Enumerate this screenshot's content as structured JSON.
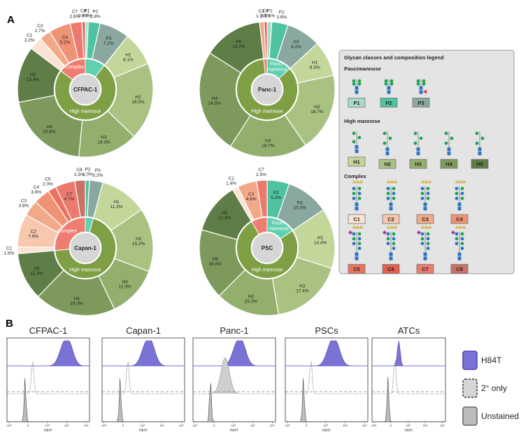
{
  "panel_labels": {
    "a": "A",
    "b": "B"
  },
  "colors": {
    "paucimannose": [
      "#a8dcc8",
      "#4fc3a1",
      "#8aa89f"
    ],
    "high_mannose": [
      "#c4d79b",
      "#a9c282",
      "#93af6e",
      "#7d9a5c",
      "#5f7d47"
    ],
    "complex": [
      "#fbe3d4",
      "#f7c8ae",
      "#f2a98a",
      "#ef9375",
      "#e9735f",
      "#e35f50",
      "#ec7a6e",
      "#c97165"
    ],
    "high_mannose_ring": "#7f9f45",
    "pauci_ring": "#5fd0b0",
    "complex_ring": "#ef7e72",
    "center": "#d6d6d6",
    "histogram_h84t": "#7b72d6",
    "histogram_unstained": "#bdbdbd"
  },
  "chart_data": [
    {
      "type": "pie",
      "title": "CFPAC-1",
      "center_label": "CFPAC-1",
      "class_labels": [
        "Complex",
        "High mannose"
      ],
      "slices": [
        {
          "name": "P1",
          "value": 0.7,
          "label": "P1\n0.7%"
        },
        {
          "name": "P2",
          "value": 2.8,
          "label": "P2\n2.8%"
        },
        {
          "name": "P3",
          "value": 7.2,
          "label": "P3\n7.2%"
        },
        {
          "name": "H1",
          "value": 8.1,
          "label": "H1\n8.1%"
        },
        {
          "name": "H2",
          "value": 18.5,
          "label": "H2\n18.5%"
        },
        {
          "name": "H3",
          "value": 14.3,
          "label": "H3\n14.3%"
        },
        {
          "name": "H4",
          "value": 20.4,
          "label": "H4\n20.4%"
        },
        {
          "name": "H5",
          "value": 13.4,
          "label": "H5\n13.4%"
        },
        {
          "name": "C1",
          "value": 3.2,
          "label": "C1\n3.2%"
        },
        {
          "name": "C3",
          "value": 2.7,
          "label": "C3\n2.7%"
        },
        {
          "name": "C4",
          "value": 5.2,
          "label": "C4\n5.2%"
        },
        {
          "name": "C7",
          "value": 2.8,
          "label": "C7\n2.8%"
        },
        {
          "name": "C8",
          "value": 0.8,
          "label": "C8\n0.8%"
        }
      ]
    },
    {
      "type": "pie",
      "title": "Panc-1",
      "center_label": "Panc-1",
      "class_labels": [
        "Pauci-\nmannose",
        "High mannose"
      ],
      "slices": [
        {
          "name": "P1",
          "value": 1.1,
          "label": "P1\n1.1%"
        },
        {
          "name": "P2",
          "value": 3.9,
          "label": "P2\n3.9%"
        },
        {
          "name": "P3",
          "value": 8.2,
          "label": "P3\n8.2%"
        },
        {
          "name": "H1",
          "value": 8.5,
          "label": "H1\n8.5%"
        },
        {
          "name": "H2",
          "value": 18.7,
          "label": "H2\n18.7%"
        },
        {
          "name": "H3",
          "value": 18.7,
          "label": "H3\n18.7%"
        },
        {
          "name": "H4",
          "value": 24.9,
          "label": "H4\n24.9%"
        },
        {
          "name": "H5",
          "value": 14.2,
          "label": "H5\n14.2%"
        },
        {
          "name": "C3",
          "value": 1.1,
          "label": "C3\n1.1%"
        },
        {
          "name": "C6",
          "value": 0.7,
          "label": "C6\n0.7%"
        }
      ]
    },
    {
      "type": "pie",
      "title": "Capan-1",
      "center_label": "Capan-1",
      "class_labels": [
        "Complex",
        "High mannose"
      ],
      "slices": [
        {
          "name": "P2",
          "value": 1.0,
          "label": "P2\n1.0%"
        },
        {
          "name": "P3",
          "value": 3.2,
          "label": "P3\n3.2%"
        },
        {
          "name": "H1",
          "value": 11.3,
          "label": "H1\n11.3%"
        },
        {
          "name": "H2",
          "value": 15.2,
          "label": "H2\n15.2%"
        },
        {
          "name": "H3",
          "value": 12.3,
          "label": "H3\n12.3%"
        },
        {
          "name": "H4",
          "value": 19.3,
          "label": "H4\n19.3%"
        },
        {
          "name": "H5",
          "value": 11.4,
          "label": "H5\n11.4%"
        },
        {
          "name": "C1",
          "value": 1.6,
          "label": "C1\n1.6%"
        },
        {
          "name": "C2",
          "value": 7.9,
          "label": "C2\n7.9%"
        },
        {
          "name": "C3",
          "value": 3.8,
          "label": "C3\n3.8%"
        },
        {
          "name": "C4",
          "value": 3.9,
          "label": "C4\n3.9%"
        },
        {
          "name": "C5",
          "value": 2.0,
          "label": "C5\n2.0%"
        },
        {
          "name": "C7",
          "value": 4.7,
          "label": "C7\n4.7%"
        },
        {
          "name": "C8",
          "value": 2.5,
          "label": "C8\n2.5%"
        }
      ]
    },
    {
      "type": "pie",
      "title": "PSC",
      "center_label": "PSC",
      "class_labels": [
        "Pauci-\nmannose",
        "High mannose"
      ],
      "slices": [
        {
          "name": "P2",
          "value": 5.3,
          "label": "P2\n5.3%"
        },
        {
          "name": "P3",
          "value": 10.2,
          "label": "P3\n10.2%"
        },
        {
          "name": "H1",
          "value": 14.4,
          "label": "H1\n14.4%"
        },
        {
          "name": "H2",
          "value": 17.4,
          "label": "H2\n17.4%"
        },
        {
          "name": "H3",
          "value": 15.2,
          "label": "H3\n15.2%"
        },
        {
          "name": "H4",
          "value": 16.8,
          "label": "H4\n16.8%"
        },
        {
          "name": "H5",
          "value": 12.2,
          "label": "H5\n12.2%"
        },
        {
          "name": "C1",
          "value": 1.4,
          "label": "C1\n1.4%"
        },
        {
          "name": "C3",
          "value": 4.6,
          "label": "C3\n4.6%"
        },
        {
          "name": "C7",
          "value": 2.5,
          "label": "C7\n2.5%"
        }
      ]
    }
  ],
  "legend": {
    "title": "Glycan classes and composition legend",
    "groups": [
      {
        "heading": "Paucimannose",
        "items": [
          "P1",
          "P2",
          "P3"
        ]
      },
      {
        "heading": "High mannose",
        "items": [
          "H1",
          "H2",
          "H3",
          "H4",
          "H5"
        ]
      },
      {
        "heading": "Complex",
        "items": [
          "C1",
          "C2",
          "C3",
          "C4",
          "C5",
          "C6",
          "C7",
          "C8"
        ]
      }
    ]
  },
  "flow": {
    "panels": [
      {
        "title": "CFPAC-1",
        "h84t_peak": 0.72,
        "secondary_peak": 0.18,
        "unstained_peak": 0.16
      },
      {
        "title": "Capan-1",
        "h84t_peak": 0.5,
        "secondary_peak": 0.18,
        "unstained_peak": 0.16
      },
      {
        "title": "Panc-1",
        "h84t_peak": 0.5,
        "secondary_peak": 0.34,
        "unstained_peak": 0.08
      },
      {
        "title": "PSCs",
        "h84t_peak": 0.53,
        "secondary_peak": 0.18,
        "unstained_peak": 0.16
      },
      {
        "title": "ATCs",
        "h84t_peak": 0.2,
        "secondary_peak": 0.18,
        "unstained_peak": 0.16
      }
    ],
    "tick_labels": [
      "-10³",
      "0",
      "10³",
      "10⁴",
      "10⁵"
    ],
    "x_axis_label": "H84T",
    "legend": [
      "H84T",
      "2° only",
      "Unstained"
    ]
  }
}
